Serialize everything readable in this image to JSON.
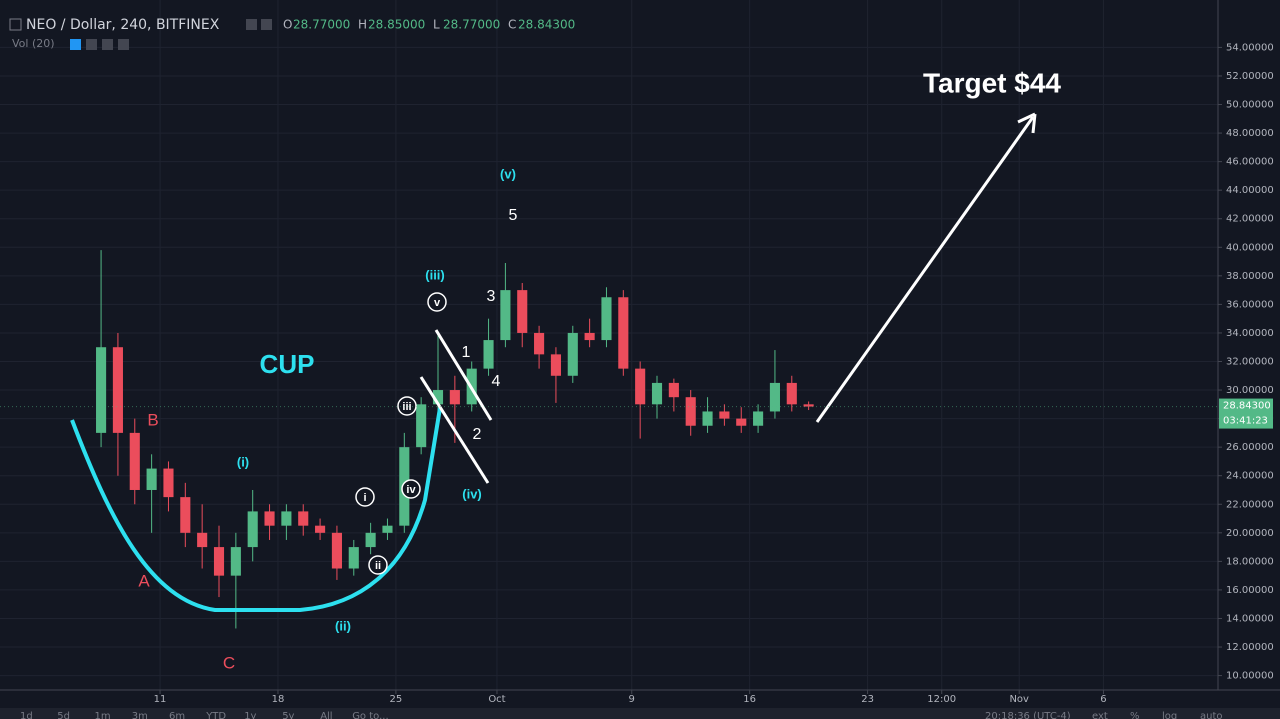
{
  "chart_data": {
    "type": "candlestick",
    "title": "NEO / Dollar, 240, BITFINEX",
    "x": [
      7.5,
      8.5,
      9.5,
      10.5,
      11.5,
      12.5,
      13.5,
      14.5,
      15.5,
      16.5,
      17.5,
      18.5,
      19.5,
      20.5,
      21.5,
      22.5,
      23.5,
      24.5,
      25.5,
      26.5,
      27.5,
      28.5,
      29.5,
      30.5,
      31.5,
      32.5,
      33.5,
      34.5,
      35.5,
      36.5,
      37.5,
      38.5,
      39.5,
      40.5,
      41.5,
      42.5,
      43.5,
      44.5,
      45.5,
      46.5,
      47.5,
      48.5,
      49.5
    ],
    "open": [
      27,
      33,
      27,
      23,
      24.5,
      22.5,
      20,
      19,
      17,
      19,
      21.5,
      20.5,
      21.5,
      20.5,
      20,
      17.5,
      19,
      20,
      20.5,
      26,
      29,
      30,
      29,
      31.5,
      33.5,
      37,
      34,
      32.5,
      31,
      34,
      33.5,
      36.5,
      31.5,
      29,
      30.5,
      29.5,
      27.5,
      28.5,
      28,
      27.5,
      28.5,
      30.5,
      29
    ],
    "high": [
      39.8,
      34,
      28,
      25.5,
      25,
      23.5,
      22,
      20.5,
      20,
      23,
      22,
      22,
      22,
      21,
      20.5,
      19.5,
      20.7,
      21,
      27,
      29.5,
      34,
      31,
      32,
      35,
      38.9,
      37.5,
      34.5,
      33,
      34.5,
      35,
      37.2,
      37,
      32,
      31,
      30.8,
      30,
      29.5,
      29,
      28.8,
      29,
      32.8,
      31,
      29.2
    ],
    "low": [
      26,
      24,
      22,
      20,
      21.5,
      19,
      17.5,
      15.5,
      13.3,
      18,
      19.5,
      19.5,
      19.8,
      19.5,
      16.7,
      17,
      18.5,
      19.5,
      20,
      25.5,
      27.5,
      26.3,
      28.5,
      31,
      33,
      33,
      31.5,
      29.1,
      30.5,
      33,
      33,
      31,
      26.6,
      28,
      28.5,
      26.8,
      27,
      27.5,
      27,
      27,
      28,
      28.5,
      28.6
    ],
    "close": [
      33,
      27,
      23,
      24.5,
      22.5,
      20,
      19,
      17,
      19,
      21.5,
      20.5,
      21.5,
      20.5,
      20,
      17.5,
      19,
      20,
      20.5,
      26,
      29,
      30,
      29,
      31.5,
      33.5,
      37,
      34,
      32.5,
      31,
      34,
      33.5,
      36.5,
      31.5,
      29,
      30.5,
      29.5,
      27.5,
      28.5,
      28,
      27.5,
      28.5,
      30.5,
      29,
      28.843
    ],
    "up_color": "#53b987",
    "down_color": "#eb4d5c",
    "xlim": [
      1.5,
      73.8
    ],
    "ylim": [
      9.2,
      55.5
    ],
    "xticks": [
      11,
      18,
      25,
      {
        "value": 31,
        "label": "Oct"
      },
      {
        "value": 39,
        "label": "9"
      },
      {
        "value": 46,
        "label": "16"
      },
      {
        "value": 53,
        "label": "23"
      },
      {
        "value": 57.4,
        "label": "12:00"
      },
      {
        "value": 62,
        "label": "Nov"
      },
      {
        "value": 67,
        "label": "6"
      }
    ],
    "yticks": [
      {
        "value": 10,
        "label": "10.00000"
      },
      {
        "value": 12,
        "label": "12.00000"
      },
      {
        "value": 14,
        "label": "14.00000"
      },
      {
        "value": 16,
        "label": "16.00000"
      },
      {
        "value": 18,
        "label": "18.00000"
      },
      {
        "value": 20,
        "label": "20.00000"
      },
      {
        "value": 22,
        "label": "22.00000"
      },
      {
        "value": 24,
        "label": "24.00000"
      },
      {
        "value": 26,
        "label": "26.00000"
      },
      {
        "value": 28,
        "label": "28.00000"
      },
      {
        "value": 30,
        "label": "30.00000"
      },
      {
        "value": 32,
        "label": "32.00000"
      },
      {
        "value": 34,
        "label": "34.00000"
      },
      {
        "value": 36,
        "label": "36.00000"
      },
      {
        "value": 38,
        "label": "38.00000"
      },
      {
        "value": 40,
        "label": "40.00000"
      },
      {
        "value": 42,
        "label": "42.00000"
      },
      {
        "value": 44,
        "label": "44.00000"
      },
      {
        "value": 46,
        "label": "46.00000"
      },
      {
        "value": 48,
        "label": "48.00000"
      },
      {
        "value": 50,
        "label": "50.00000"
      },
      {
        "value": 52,
        "label": "52.00000"
      },
      {
        "value": 54,
        "label": "54.00000"
      }
    ],
    "grid": true,
    "last_price": {
      "value": 28.843,
      "label": "28.84300"
    },
    "countdown": "03:41:23",
    "annotations": [
      "CUP",
      "Target $44",
      "B",
      "A",
      "C",
      "(i)",
      "(ii)",
      "(iii)",
      "(iv)",
      "(v)",
      "1",
      "2",
      "3",
      "4",
      "5",
      "i",
      "ii",
      "iii",
      "iv",
      "v"
    ]
  },
  "header": {
    "ohlc": [
      {
        "key": "O",
        "value": "28.77000"
      },
      {
        "key": "H",
        "value": "28.85000"
      },
      {
        "key": "L",
        "value": "28.77000"
      },
      {
        "key": "C",
        "value": "28.84300"
      }
    ],
    "volume": "Vol (20)"
  },
  "toolbar": {
    "ranges": [
      "1d",
      "5d",
      "1m",
      "3m",
      "6m",
      "YTD",
      "1y",
      "5y",
      "All",
      "Go to..."
    ],
    "clock": "20:18:36 (UTC-4)",
    "options": [
      "ext",
      "%",
      "log",
      "auto"
    ]
  }
}
